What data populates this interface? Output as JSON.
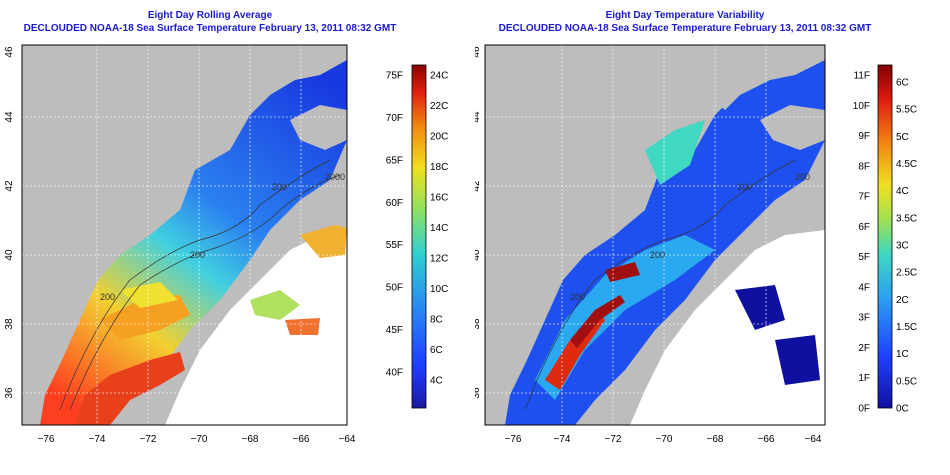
{
  "panels": [
    {
      "title": "Eight Day Rolling Average",
      "subtitle": "DECLOUDED NOAA-18 Sea Surface Temperature February 13, 2011 08:32 GMT",
      "colorbar_f_labels": [
        "75F",
        "70F",
        "65F",
        "60F",
        "55F",
        "50F",
        "45F",
        "40F"
      ],
      "colorbar_c_labels": [
        "24C",
        "22C",
        "20C",
        "18C",
        "16C",
        "14C",
        "12C",
        "10C",
        "8C",
        "6C",
        "4C"
      ],
      "contour_labels": [
        "200",
        "200",
        "2000",
        "200",
        "200"
      ]
    },
    {
      "title": "Eight Day Temperature Variability",
      "subtitle": "DECLOUDED NOAA-18 Sea Surface Temperature February 13, 2011 08:32 GMT",
      "colorbar_f_labels": [
        "11F",
        "10F",
        "9F",
        "8F",
        "7F",
        "6F",
        "5F",
        "4F",
        "3F",
        "2F",
        "1F",
        "0F"
      ],
      "colorbar_c_labels": [
        "6C",
        "5.5C",
        "5C",
        "4.5C",
        "4C",
        "3.5C",
        "3C",
        "2.5C",
        "2C",
        "1.5C",
        "1C",
        "0.5C",
        "0C"
      ],
      "contour_labels": [
        "200",
        "200",
        "200",
        "200"
      ]
    }
  ],
  "axes": {
    "x_tick_labels": [
      "−76",
      "−74",
      "−72",
      "−70",
      "−68",
      "−66",
      "−64"
    ],
    "y_tick_labels": [
      "46",
      "44",
      "42",
      "40",
      "38",
      "36"
    ]
  },
  "colors": {
    "title": "#1a1ad0",
    "land": "#bdbdbd",
    "no_data": "#ffffff",
    "grid": "#ffffff"
  }
}
